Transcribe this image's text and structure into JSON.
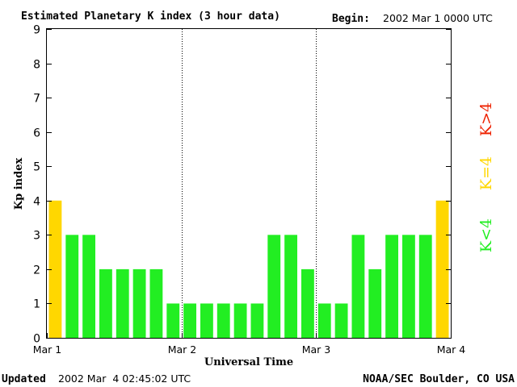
{
  "header": {
    "title": "Estimated Planetary K index (3 hour data)",
    "begin_label": "Begin:",
    "begin_value": "2002 Mar 1 0000 UTC"
  },
  "footer": {
    "updated_label": "Updated",
    "updated_value": "2002 Mar  4 02:45:02 UTC",
    "source": "NOAA/SEC Boulder, CO USA"
  },
  "legend": {
    "green": "K<4",
    "yellow": "K=4",
    "red": "K>4"
  },
  "colors": {
    "green": "#22ee22",
    "yellow": "#ffd700",
    "red": "#ee2200"
  },
  "chart_data": {
    "type": "bar",
    "title": "Estimated Planetary K index (3 hour data)",
    "xlabel": "Universal Time",
    "ylabel": "Kp index",
    "ylim": [
      0,
      9
    ],
    "yticks": [
      0,
      1,
      2,
      3,
      4,
      5,
      6,
      7,
      8,
      9
    ],
    "xtick_labels": [
      "Mar 1",
      "Mar 2",
      "Mar 3",
      "Mar 4"
    ],
    "day_separators": [
      1,
      2
    ],
    "grid": false,
    "values": [
      4,
      3,
      3,
      2,
      2,
      2,
      2,
      1,
      1,
      1,
      1,
      1,
      1,
      3,
      3,
      2,
      1,
      1,
      3,
      2,
      3,
      3,
      3,
      4
    ]
  }
}
